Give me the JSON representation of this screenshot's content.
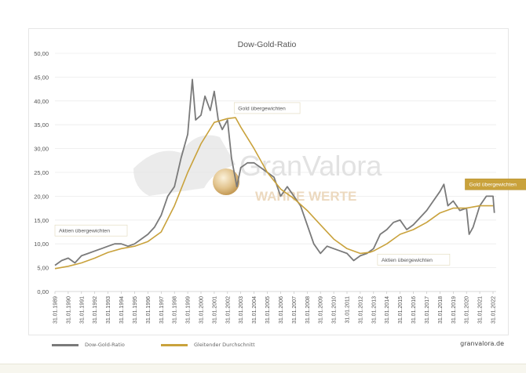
{
  "chart_data": {
    "type": "line",
    "title": "Dow-Gold-Ratio",
    "xlabel": "",
    "ylabel": "",
    "ylim": [
      0,
      50
    ],
    "xlim": [
      1989,
      2022
    ],
    "y_ticks": [
      "0,00",
      "5,00",
      "10,00",
      "15,00",
      "20,00",
      "25,00",
      "30,00",
      "35,00",
      "40,00",
      "45,00",
      "50,00"
    ],
    "x_ticks": [
      "31.01.1989",
      "31.01.1990",
      "31.01.1991",
      "31.01.1992",
      "31.01.1993",
      "31.01.1994",
      "31.01.1995",
      "31.01.1996",
      "31.01.1997",
      "31.01.1998",
      "31.01.1999",
      "31.01.2000",
      "31.01.2001",
      "31.01.2002",
      "31.01.2003",
      "31.01.2004",
      "31.01.2005",
      "31.01.2006",
      "31.01.2007",
      "31.01.2008",
      "31.01.2009",
      "31.01.2010",
      "31.01.2011",
      "31.01.2012",
      "31.01.2013",
      "31.01.2014",
      "31.01.2015",
      "31.01.2016",
      "31.01.2017",
      "31.01.2018",
      "31.01.2019",
      "31.01.2020",
      "31.01.2021",
      "31.01.2022"
    ],
    "grid": true,
    "legend_position": "bottom",
    "series": [
      {
        "name": "Dow-Gold-Ratio",
        "color": "#7a7a7a",
        "x": [
          1989,
          1989.5,
          1990,
          1990.5,
          1991,
          1991.5,
          1992,
          1992.5,
          1993,
          1993.5,
          1994,
          1994.5,
          1995,
          1995.5,
          1996,
          1996.5,
          1997,
          1997.5,
          1998,
          1998.5,
          1999,
          1999.35,
          1999.6,
          2000,
          2000.3,
          2000.7,
          2001,
          2001.3,
          2001.6,
          2002,
          2002.3,
          2002.7,
          2003,
          2003.5,
          2004,
          2004.5,
          2005,
          2005.5,
          2006,
          2006.5,
          2007,
          2007.5,
          2008,
          2008.5,
          2009,
          2009.5,
          2010,
          2010.5,
          2011,
          2011.5,
          2012,
          2012.5,
          2013,
          2013.5,
          2014,
          2014.5,
          2015,
          2015.5,
          2016,
          2016.5,
          2017,
          2017.5,
          2018,
          2018.3,
          2018.6,
          2019,
          2019.5,
          2020,
          2020.2,
          2020.5,
          2021,
          2021.5,
          2022,
          2022.1
        ],
        "y": [
          5.5,
          6.5,
          7,
          6,
          7.5,
          8,
          8.5,
          9,
          9.5,
          10,
          10,
          9.5,
          10,
          11,
          12,
          13.5,
          16,
          20,
          22,
          28,
          33,
          44.5,
          36,
          37,
          41,
          38,
          42,
          36,
          34,
          36,
          28,
          22,
          26,
          27,
          27,
          26,
          25,
          24,
          20,
          22,
          20,
          18,
          14,
          10,
          8,
          9.5,
          9,
          8.5,
          8,
          6.5,
          7.5,
          8,
          9,
          12,
          13,
          14.5,
          15,
          13,
          14,
          15.5,
          17,
          19,
          21,
          22.5,
          18,
          19,
          17,
          17.5,
          12,
          13.5,
          18,
          20,
          20,
          16.5
        ]
      },
      {
        "name": "Gleitender Durchschnitt",
        "color": "#c9a23c",
        "x": [
          1989,
          1990,
          1991,
          1992,
          1993,
          1994,
          1995,
          1996,
          1997,
          1998,
          1999,
          2000,
          2001,
          2002,
          2002.6,
          2003,
          2004,
          2005,
          2006,
          2007,
          2008,
          2009,
          2010,
          2011,
          2012,
          2012.7,
          2013,
          2014,
          2015,
          2016,
          2017,
          2018,
          2019,
          2020,
          2021,
          2022
        ],
        "y": [
          4.8,
          5.3,
          6,
          7,
          8.2,
          9,
          9.5,
          10.5,
          12.5,
          18,
          25,
          31,
          35.5,
          36.3,
          36.5,
          34.5,
          30,
          25,
          21.5,
          19.5,
          17,
          14,
          11,
          9,
          8,
          8.2,
          8.5,
          10,
          12,
          13,
          14.5,
          16.5,
          17.5,
          17.5,
          18,
          18
        ]
      }
    ],
    "annotations": [
      {
        "text": "Aktien übergewichten",
        "x": 1989,
        "y": 12.8,
        "style": "white"
      },
      {
        "text": "Gold übergewichten",
        "x": 2002.5,
        "y": 38.5,
        "style": "white"
      },
      {
        "text": "Aktien übergewichten",
        "x": 2013.3,
        "y": 6.7,
        "style": "white"
      },
      {
        "text": "Gold übergewichten",
        "x": 2019.9,
        "y": 22.5,
        "style": "gold"
      }
    ]
  },
  "watermark": {
    "brand": "GranValora",
    "tagline": "WAHRE WERTE"
  },
  "legend": {
    "items": [
      "Dow-Gold-Ratio",
      "Gleitender Durchschnitt"
    ]
  },
  "credit": "granvalora.de"
}
